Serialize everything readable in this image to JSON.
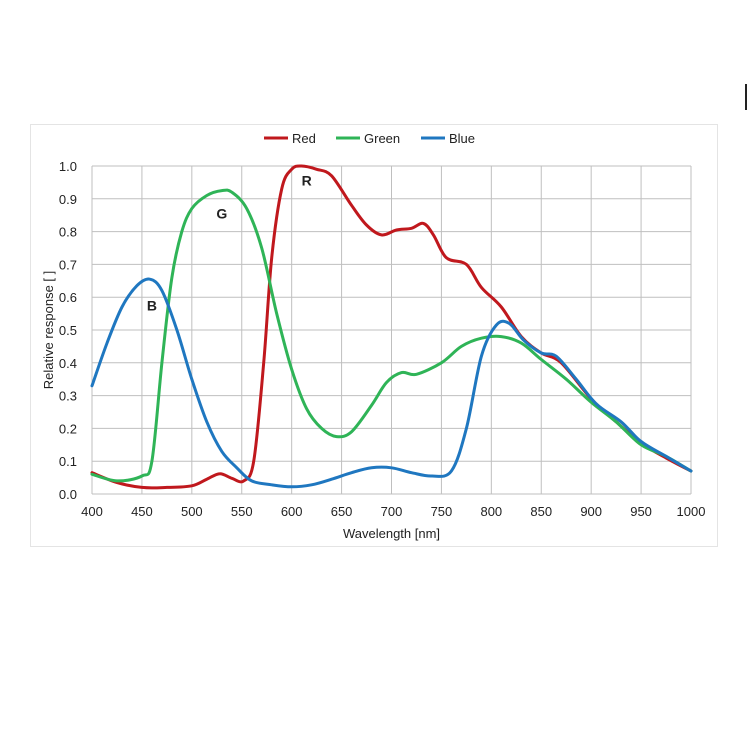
{
  "chart_data": {
    "type": "line",
    "xlabel": "Wavelength [nm]",
    "ylabel": "Relative response [ ]",
    "xlim": [
      400,
      1000
    ],
    "ylim": [
      0,
      1.0
    ],
    "xticks": [
      400,
      450,
      500,
      550,
      600,
      650,
      700,
      750,
      800,
      850,
      900,
      950,
      1000
    ],
    "yticks": [
      0,
      0.1,
      0.2,
      0.3,
      0.4,
      0.5,
      0.6,
      0.7,
      0.8,
      0.9,
      1.0
    ],
    "xtick_labels": [
      "400",
      "450",
      "500",
      "550",
      "600",
      "650",
      "700",
      "750",
      "800",
      "850",
      "900",
      "950",
      "1000"
    ],
    "ytick_labels": [
      "0.0",
      "0.1",
      "0.2",
      "0.3",
      "0.4",
      "0.5",
      "0.6",
      "0.7",
      "0.8",
      "0.9",
      "1.0"
    ],
    "grid": true,
    "legend_position": "top-center",
    "series": [
      {
        "name": "Red",
        "color": "#c0181d",
        "label": "R",
        "label_at": [
          615,
          0.94
        ],
        "points": [
          [
            400,
            0.065
          ],
          [
            425,
            0.035
          ],
          [
            450,
            0.02
          ],
          [
            475,
            0.02
          ],
          [
            500,
            0.025
          ],
          [
            515,
            0.045
          ],
          [
            528,
            0.062
          ],
          [
            540,
            0.048
          ],
          [
            552,
            0.04
          ],
          [
            562,
            0.1
          ],
          [
            572,
            0.4
          ],
          [
            580,
            0.72
          ],
          [
            590,
            0.93
          ],
          [
            600,
            0.99
          ],
          [
            610,
            1.0
          ],
          [
            625,
            0.99
          ],
          [
            640,
            0.97
          ],
          [
            660,
            0.88
          ],
          [
            675,
            0.82
          ],
          [
            690,
            0.79
          ],
          [
            705,
            0.805
          ],
          [
            720,
            0.81
          ],
          [
            732,
            0.825
          ],
          [
            742,
            0.79
          ],
          [
            755,
            0.72
          ],
          [
            775,
            0.7
          ],
          [
            790,
            0.63
          ],
          [
            810,
            0.57
          ],
          [
            830,
            0.48
          ],
          [
            850,
            0.43
          ],
          [
            870,
            0.4
          ],
          [
            900,
            0.29
          ],
          [
            925,
            0.22
          ],
          [
            950,
            0.155
          ],
          [
            975,
            0.11
          ],
          [
            1000,
            0.07
          ]
        ]
      },
      {
        "name": "Green",
        "color": "#2fb457",
        "label": "G",
        "label_at": [
          530,
          0.84
        ],
        "points": [
          [
            400,
            0.06
          ],
          [
            425,
            0.04
          ],
          [
            450,
            0.055
          ],
          [
            460,
            0.1
          ],
          [
            470,
            0.4
          ],
          [
            480,
            0.66
          ],
          [
            490,
            0.8
          ],
          [
            500,
            0.87
          ],
          [
            515,
            0.91
          ],
          [
            530,
            0.925
          ],
          [
            540,
            0.92
          ],
          [
            555,
            0.87
          ],
          [
            570,
            0.75
          ],
          [
            585,
            0.55
          ],
          [
            600,
            0.38
          ],
          [
            615,
            0.26
          ],
          [
            630,
            0.2
          ],
          [
            645,
            0.175
          ],
          [
            660,
            0.19
          ],
          [
            680,
            0.27
          ],
          [
            695,
            0.34
          ],
          [
            710,
            0.37
          ],
          [
            725,
            0.365
          ],
          [
            750,
            0.4
          ],
          [
            770,
            0.45
          ],
          [
            790,
            0.475
          ],
          [
            810,
            0.48
          ],
          [
            830,
            0.46
          ],
          [
            850,
            0.41
          ],
          [
            875,
            0.35
          ],
          [
            900,
            0.28
          ],
          [
            925,
            0.22
          ],
          [
            950,
            0.15
          ],
          [
            975,
            0.115
          ],
          [
            1000,
            0.07
          ]
        ]
      },
      {
        "name": "Blue",
        "color": "#1f77c0",
        "label": "B",
        "label_at": [
          460,
          0.56
        ],
        "points": [
          [
            400,
            0.33
          ],
          [
            415,
            0.46
          ],
          [
            430,
            0.57
          ],
          [
            445,
            0.635
          ],
          [
            458,
            0.655
          ],
          [
            470,
            0.62
          ],
          [
            485,
            0.5
          ],
          [
            500,
            0.35
          ],
          [
            515,
            0.22
          ],
          [
            530,
            0.13
          ],
          [
            545,
            0.08
          ],
          [
            560,
            0.04
          ],
          [
            580,
            0.028
          ],
          [
            600,
            0.022
          ],
          [
            620,
            0.028
          ],
          [
            640,
            0.045
          ],
          [
            660,
            0.065
          ],
          [
            680,
            0.08
          ],
          [
            700,
            0.08
          ],
          [
            720,
            0.065
          ],
          [
            740,
            0.055
          ],
          [
            760,
            0.07
          ],
          [
            775,
            0.2
          ],
          [
            790,
            0.42
          ],
          [
            805,
            0.515
          ],
          [
            818,
            0.52
          ],
          [
            832,
            0.47
          ],
          [
            850,
            0.43
          ],
          [
            865,
            0.42
          ],
          [
            885,
            0.35
          ],
          [
            905,
            0.275
          ],
          [
            930,
            0.22
          ],
          [
            950,
            0.16
          ],
          [
            975,
            0.115
          ],
          [
            1000,
            0.07
          ]
        ]
      }
    ]
  }
}
